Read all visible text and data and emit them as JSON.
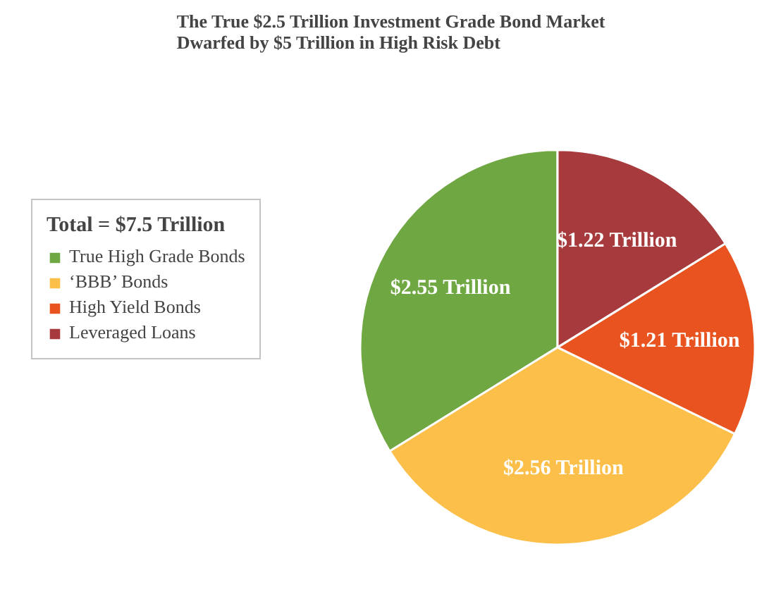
{
  "chart_data": {
    "type": "pie",
    "title": "The True $2.5 Trillion Investment Grade Bond Market\nDwarfed by $5 Trillion in High Risk Debt",
    "legend_title": "Total = $7.5 Trillion",
    "legend": "left",
    "categories": [
      "True High Grade Bonds",
      "‘BBB’ Bonds",
      "High Yield Bonds",
      "Leveraged Loans"
    ],
    "values": [
      2.55,
      2.56,
      1.21,
      1.22
    ],
    "colors": [
      "#6fa843",
      "#fbbf4a",
      "#e8531f",
      "#a63a3c"
    ],
    "value_labels": [
      "$2.55 Trillion",
      "$2.56 Trillion",
      "$1.21 Trillion",
      "$1.22 Trillion"
    ]
  }
}
